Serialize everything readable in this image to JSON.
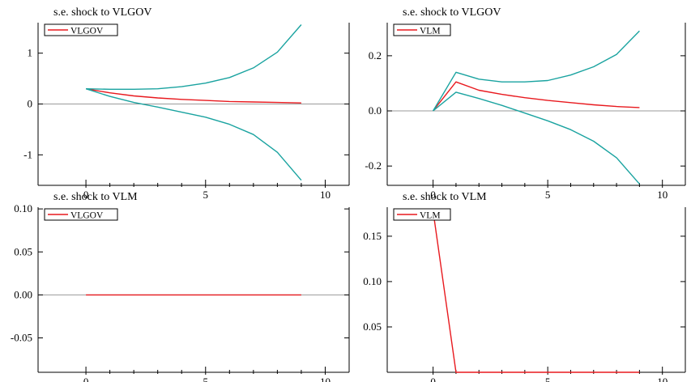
{
  "chart_data": [
    {
      "type": "line",
      "title": "s.e. shock to VLGOV",
      "legend": [
        "VLGOV"
      ],
      "legend_placement": "top-left",
      "xlim": [
        -2,
        11
      ],
      "ylim": [
        -1.6,
        1.6
      ],
      "xticks": [
        0,
        5,
        10
      ],
      "xtick_labels": [
        "0",
        "5",
        "10"
      ],
      "yticks": [
        -1,
        0,
        1
      ],
      "ytick_labels": [
        "-1",
        "0",
        "1"
      ],
      "zero_line": true,
      "series": [
        {
          "name": "VLGOV",
          "role": "response",
          "color": "#e8191e",
          "x": [
            0,
            1,
            2,
            3,
            4,
            5,
            6,
            7,
            8,
            9
          ],
          "y": [
            0.3,
            0.22,
            0.16,
            0.12,
            0.09,
            0.07,
            0.05,
            0.04,
            0.03,
            0.02
          ]
        },
        {
          "role": "upper band",
          "color": "#1aa3a0",
          "x": [
            0,
            1,
            2,
            3,
            4,
            5,
            6,
            7,
            8,
            9
          ],
          "y": [
            0.3,
            0.29,
            0.29,
            0.3,
            0.34,
            0.41,
            0.52,
            0.71,
            1.02,
            1.56
          ]
        },
        {
          "role": "lower band",
          "color": "#1aa3a0",
          "x": [
            0,
            1,
            2,
            3,
            4,
            5,
            6,
            7,
            8,
            9
          ],
          "y": [
            0.3,
            0.15,
            0.03,
            -0.06,
            -0.16,
            -0.26,
            -0.4,
            -0.6,
            -0.95,
            -1.5
          ]
        }
      ]
    },
    {
      "type": "line",
      "title": "s.e. shock to VLGOV",
      "legend": [
        "VLM"
      ],
      "legend_placement": "top-left",
      "xlim": [
        -2,
        11
      ],
      "ylim": [
        -0.27,
        0.32
      ],
      "xticks": [
        0,
        5,
        10
      ],
      "xtick_labels": [
        "0",
        "5",
        "10"
      ],
      "yticks": [
        -0.2,
        0,
        0.2
      ],
      "ytick_labels": [
        "-0.2",
        "0.0",
        "0.2"
      ],
      "zero_line": true,
      "series": [
        {
          "name": "VLM",
          "role": "response",
          "color": "#e8191e",
          "x": [
            0,
            1,
            2,
            3,
            4,
            5,
            6,
            7,
            8,
            9
          ],
          "y": [
            0.0,
            0.105,
            0.075,
            0.06,
            0.048,
            0.038,
            0.03,
            0.022,
            0.016,
            0.012
          ]
        },
        {
          "role": "upper band",
          "color": "#1aa3a0",
          "x": [
            0,
            1,
            2,
            3,
            4,
            5,
            6,
            7,
            8,
            9
          ],
          "y": [
            0.0,
            0.14,
            0.115,
            0.105,
            0.105,
            0.11,
            0.13,
            0.16,
            0.205,
            0.29
          ]
        },
        {
          "role": "lower band",
          "color": "#1aa3a0",
          "x": [
            0,
            1,
            2,
            3,
            4,
            5,
            6,
            7,
            8,
            9
          ],
          "y": [
            0.0,
            0.068,
            0.045,
            0.02,
            -0.008,
            -0.036,
            -0.068,
            -0.11,
            -0.17,
            -0.265
          ]
        }
      ]
    },
    {
      "type": "line",
      "title": "s.e. shock to VLM",
      "legend": [
        "VLGOV"
      ],
      "legend_placement": "top-left",
      "xlim": [
        -2,
        11
      ],
      "ylim": [
        -0.09,
        0.102
      ],
      "xticks": [
        0,
        5,
        10
      ],
      "xtick_labels": [
        "0",
        "5",
        "10"
      ],
      "yticks": [
        -0.05,
        0,
        0.05,
        0.1
      ],
      "ytick_labels": [
        "-0.05",
        "0.00",
        "0.05",
        "0.10"
      ],
      "zero_line": true,
      "series": [
        {
          "name": "VLGOV",
          "role": "response",
          "color": "#e8191e",
          "x": [
            0,
            1,
            2,
            3,
            4,
            5,
            6,
            7,
            8,
            9
          ],
          "y": [
            0,
            0,
            0,
            0,
            0,
            0,
            0,
            0,
            0,
            0
          ]
        }
      ]
    },
    {
      "type": "line",
      "title": "s.e. shock to VLM",
      "legend": [
        "VLM"
      ],
      "legend_placement": "top-left",
      "xlim": [
        -2,
        11
      ],
      "ylim": [
        0,
        0.182
      ],
      "xticks": [
        0,
        5,
        10
      ],
      "xtick_labels": [
        "0",
        "5",
        "10"
      ],
      "yticks": [
        0.05,
        0.1,
        0.15
      ],
      "ytick_labels": [
        "0.05",
        "0.10",
        "0.15"
      ],
      "zero_line": false,
      "series": [
        {
          "name": "VLM",
          "role": "response",
          "color": "#e8191e",
          "x": [
            0,
            1,
            2,
            3,
            4,
            5,
            6,
            7,
            8,
            9
          ],
          "y": [
            0.178,
            0,
            0,
            0,
            0,
            0,
            0,
            0,
            0,
            0
          ]
        }
      ]
    }
  ]
}
